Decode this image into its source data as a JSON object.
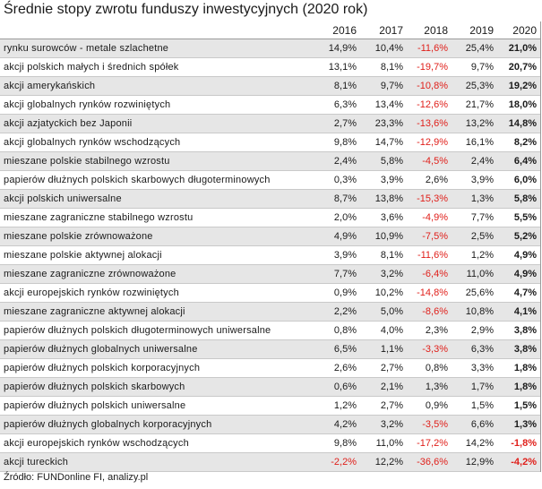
{
  "title": "Średnie stopy zwrotu funduszy inwestycyjnych (2020 rok)",
  "columns": [
    "2016",
    "2017",
    "2018",
    "2019",
    "2020"
  ],
  "colors": {
    "negative": "#e0201b",
    "stripe": "#e6e6e6"
  },
  "rows": [
    {
      "name": "rynku surowców - metale szlachetne",
      "values": [
        "14,9%",
        "10,4%",
        "-11,6%",
        "25,4%",
        "21,0%"
      ]
    },
    {
      "name": "akcji polskich małych i średnich spółek",
      "values": [
        "13,1%",
        "8,1%",
        "-19,7%",
        "9,7%",
        "20,7%"
      ]
    },
    {
      "name": "akcji amerykańskich",
      "values": [
        "8,1%",
        "9,7%",
        "-10,8%",
        "25,3%",
        "19,2%"
      ]
    },
    {
      "name": "akcji globalnych rynków rozwiniętych",
      "values": [
        "6,3%",
        "13,4%",
        "-12,6%",
        "21,7%",
        "18,0%"
      ]
    },
    {
      "name": "akcji azjatyckich bez Japonii",
      "values": [
        "2,7%",
        "23,3%",
        "-13,6%",
        "13,2%",
        "14,8%"
      ]
    },
    {
      "name": "akcji globalnych rynków wschodzących",
      "values": [
        "9,8%",
        "14,7%",
        "-12,9%",
        "16,1%",
        "8,2%"
      ]
    },
    {
      "name": "mieszane polskie stabilnego wzrostu",
      "values": [
        "2,4%",
        "5,8%",
        "-4,5%",
        "2,4%",
        "6,4%"
      ]
    },
    {
      "name": "papierów dłużnych polskich skarbowych długoterminowych",
      "values": [
        "0,3%",
        "3,9%",
        "2,6%",
        "3,9%",
        "6,0%"
      ]
    },
    {
      "name": "akcji polskich uniwersalne",
      "values": [
        "8,7%",
        "13,8%",
        "-15,3%",
        "1,3%",
        "5,8%"
      ]
    },
    {
      "name": "mieszane zagraniczne stabilnego wzrostu",
      "values": [
        "2,0%",
        "3,6%",
        "-4,9%",
        "7,7%",
        "5,5%"
      ]
    },
    {
      "name": "mieszane polskie zrównoważone",
      "values": [
        "4,9%",
        "10,9%",
        "-7,5%",
        "2,5%",
        "5,2%"
      ]
    },
    {
      "name": "mieszane polskie aktywnej alokacji",
      "values": [
        "3,9%",
        "8,1%",
        "-11,6%",
        "1,2%",
        "4,9%"
      ]
    },
    {
      "name": "mieszane zagraniczne zrównoważone",
      "values": [
        "7,7%",
        "3,2%",
        "-6,4%",
        "11,0%",
        "4,9%"
      ]
    },
    {
      "name": "akcji europejskich rynków rozwiniętych",
      "values": [
        "0,9%",
        "10,2%",
        "-14,8%",
        "25,6%",
        "4,7%"
      ]
    },
    {
      "name": "mieszane zagraniczne aktywnej alokacji",
      "values": [
        "2,2%",
        "5,0%",
        "-8,6%",
        "10,8%",
        "4,1%"
      ]
    },
    {
      "name": "papierów dłużnych polskich długoterminowych uniwersalne",
      "values": [
        "0,8%",
        "4,0%",
        "2,3%",
        "2,9%",
        "3,8%"
      ]
    },
    {
      "name": "papierów dłużnych globalnych uniwersalne",
      "values": [
        "6,5%",
        "1,1%",
        "-3,3%",
        "6,3%",
        "3,8%"
      ]
    },
    {
      "name": "papierów dłużnych polskich korporacyjnych",
      "values": [
        "2,6%",
        "2,7%",
        "0,8%",
        "3,3%",
        "1,8%"
      ]
    },
    {
      "name": "papierów dłużnych polskich skarbowych",
      "values": [
        "0,6%",
        "2,1%",
        "1,3%",
        "1,7%",
        "1,8%"
      ]
    },
    {
      "name": "papierów dłużnych polskich uniwersalne",
      "values": [
        "1,2%",
        "2,7%",
        "0,9%",
        "1,5%",
        "1,5%"
      ]
    },
    {
      "name": "papierów dłużnych globalnych korporacyjnych",
      "values": [
        "4,2%",
        "3,2%",
        "-3,5%",
        "6,6%",
        "1,3%"
      ]
    },
    {
      "name": "akcji europejskich rynków wschodzących",
      "values": [
        "9,8%",
        "11,0%",
        "-17,2%",
        "14,2%",
        "-1,8%"
      ]
    },
    {
      "name": "akcji tureckich",
      "values": [
        "-2,2%",
        "12,2%",
        "-36,6%",
        "12,9%",
        "-4,2%"
      ]
    }
  ],
  "source": "Źródło: FUNDonline FI, analizy.pl"
}
